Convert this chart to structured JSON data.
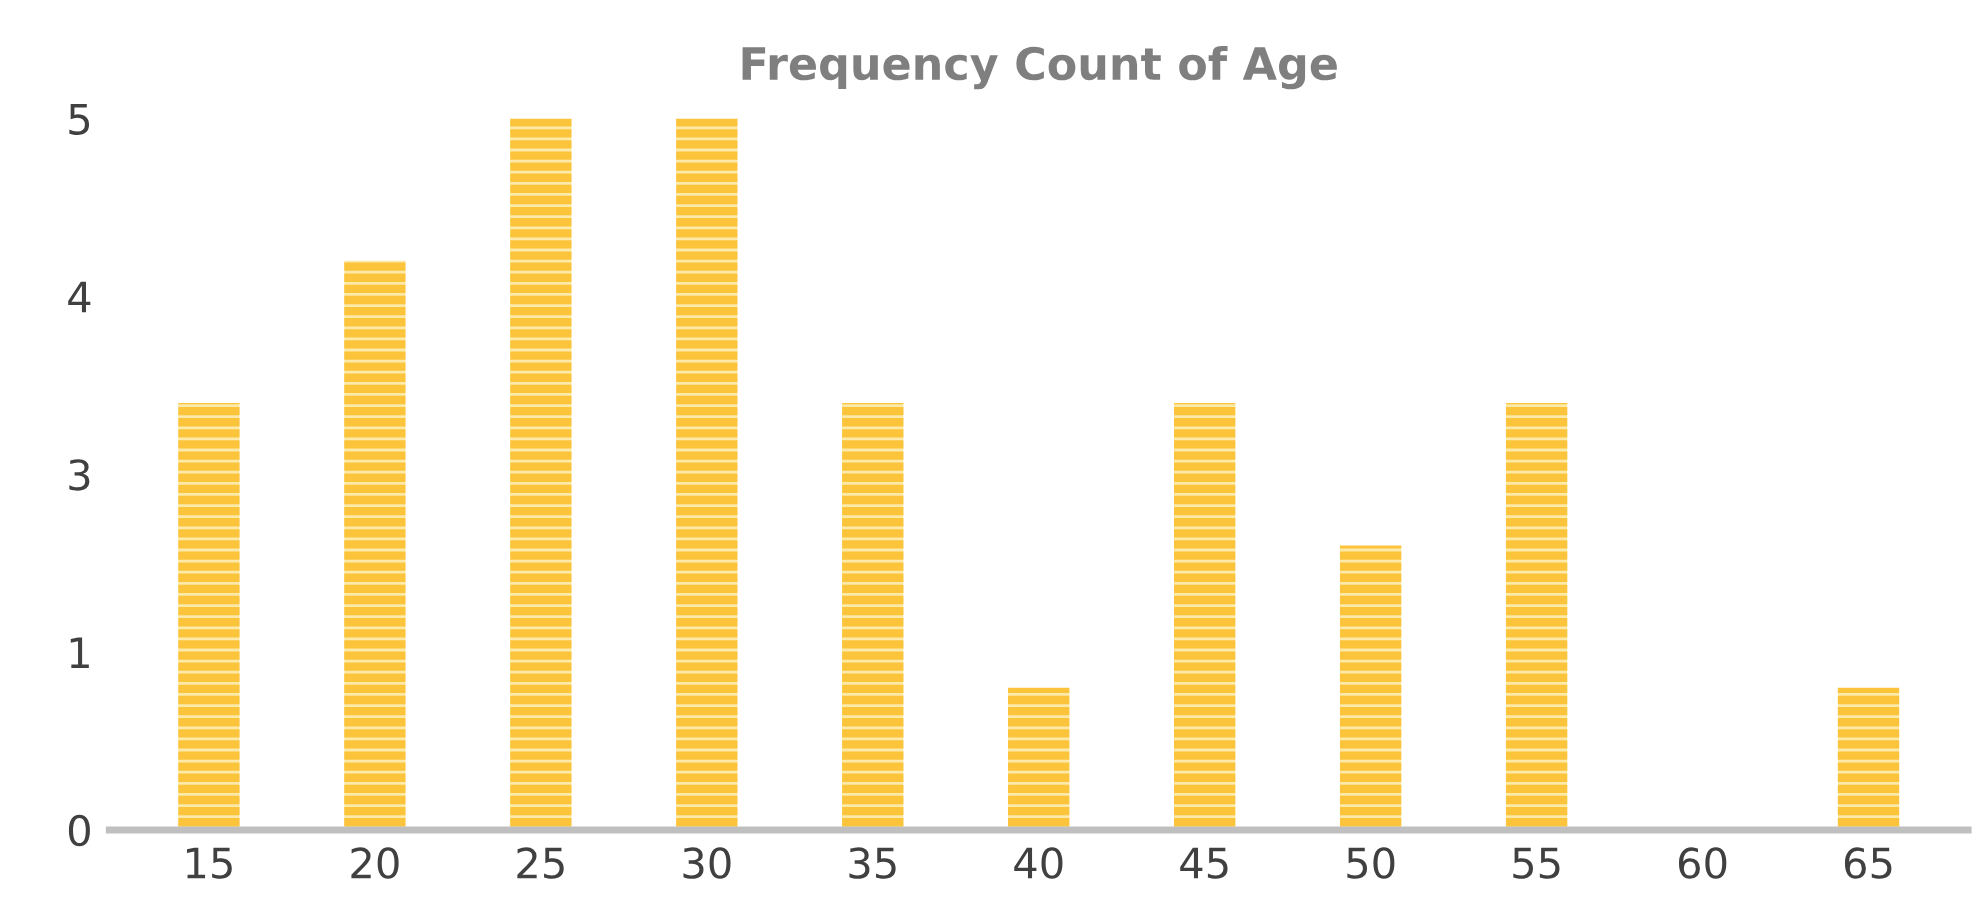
{
  "chart_data": {
    "type": "bar",
    "title": "Frequency Count of Age",
    "categories": [
      "15",
      "20",
      "25",
      "30",
      "35",
      "40",
      "45",
      "50",
      "55",
      "60",
      "65"
    ],
    "values": [
      3,
      4,
      5,
      5,
      3,
      1,
      3,
      2,
      3,
      0,
      1
    ],
    "color": "#fbc43a",
    "ylim": [
      0,
      5
    ],
    "yticks": [
      0,
      {
        "value": 1.25,
        "label": "1"
      },
      {
        "value": 2.5,
        "label": "3"
      },
      {
        "value": 3.75,
        "label": "4"
      },
      5
    ],
    "grid": false
  }
}
